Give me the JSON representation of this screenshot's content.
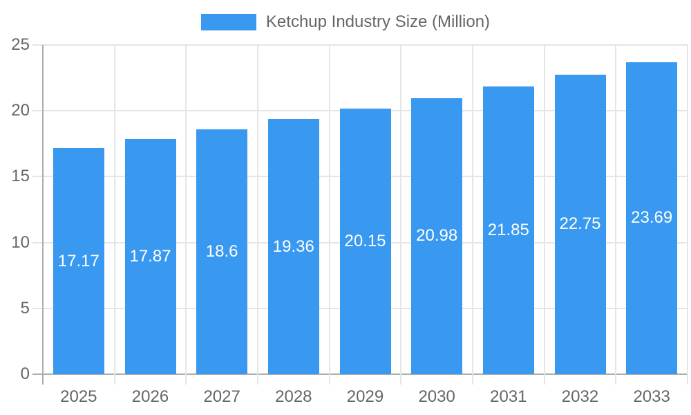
{
  "chart_data": {
    "type": "bar",
    "title": "Ketchup Industry Size (Million)",
    "categories": [
      "2025",
      "2026",
      "2027",
      "2028",
      "2029",
      "2030",
      "2031",
      "2032",
      "2033"
    ],
    "values": [
      17.17,
      17.87,
      18.6,
      19.36,
      20.15,
      20.98,
      21.85,
      22.75,
      23.69
    ],
    "value_labels": [
      "17.17",
      "17.87",
      "18.6",
      "19.36",
      "20.15",
      "20.98",
      "21.85",
      "22.75",
      "23.69"
    ],
    "xlabel": "",
    "ylabel": "",
    "ylim": [
      0,
      25
    ],
    "yticks": [
      0,
      5,
      10,
      15,
      20,
      25
    ],
    "grid": true,
    "legend": {
      "label": "Ketchup Industry Size (Million)",
      "position": "top-center"
    },
    "colors": {
      "bar": "#3999F0",
      "value_label": "#FFFFFF",
      "tick_label": "#666666",
      "legend_label": "#666666",
      "gridline": "#E5E5E5",
      "axis_line": "#ADADAD",
      "background": "#FFFFFF"
    }
  }
}
